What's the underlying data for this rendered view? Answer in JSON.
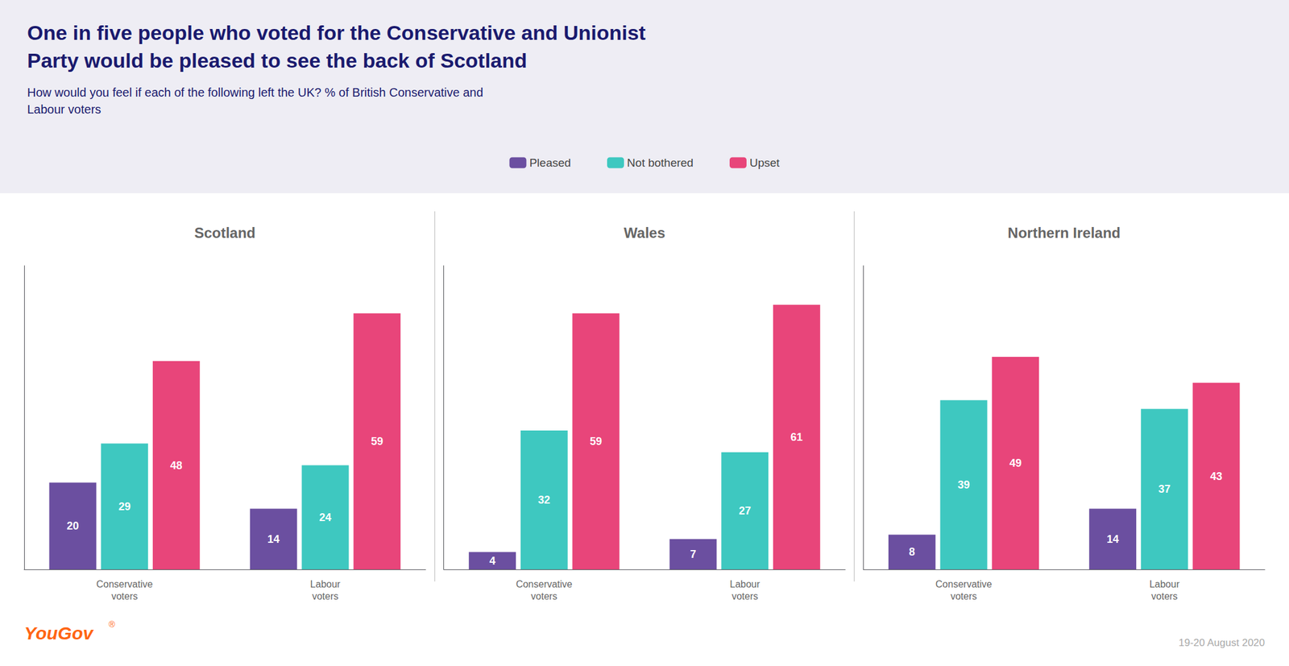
{
  "title": "One in five people who voted for the Conservative and Unionist\nParty would be pleased to see the back of Scotland",
  "subtitle": "How would you feel if each of the following left the UK? % of British Conservative and\nLabour voters",
  "annotations": [
    "YouGov",
    "®",
    "19-20 August 2020"
  ],
  "chart_data": [
    {
      "type": "bar",
      "title": "Scotland",
      "categories": [
        "Conservative\nvoters",
        "Labour\nvoters"
      ],
      "series": [
        {
          "name": "Pleased",
          "color": "#6b4fa0",
          "values": [
            20,
            14
          ]
        },
        {
          "name": "Not bothered",
          "color": "#3ec8c0",
          "values": [
            29,
            24
          ]
        },
        {
          "name": "Upset",
          "color": "#e8457a",
          "values": [
            48,
            59
          ]
        }
      ],
      "ylim": [
        0,
        70
      ],
      "yticks": [],
      "tick_labels": "x",
      "grid": false,
      "data_labels": true,
      "legend": "top"
    },
    {
      "type": "bar",
      "title": "Wales",
      "categories": [
        "Conservative\nvoters",
        "Labour\nvoters"
      ],
      "series": [
        {
          "name": "Pleased",
          "color": "#6b4fa0",
          "values": [
            4,
            7
          ]
        },
        {
          "name": "Not bothered",
          "color": "#3ec8c0",
          "values": [
            32,
            27
          ]
        },
        {
          "name": "Upset",
          "color": "#e8457a",
          "values": [
            59,
            61
          ]
        }
      ],
      "ylim": [
        0,
        70
      ],
      "yticks": [],
      "tick_labels": "x",
      "grid": false,
      "data_labels": true
    },
    {
      "type": "bar",
      "title": "Northern Ireland",
      "categories": [
        "Conservative\nvoters",
        "Labour\nvoters"
      ],
      "series": [
        {
          "name": "Pleased",
          "color": "#6b4fa0",
          "values": [
            8,
            14
          ]
        },
        {
          "name": "Not bothered",
          "color": "#3ec8c0",
          "values": [
            39,
            37
          ]
        },
        {
          "name": "Upset",
          "color": "#e8457a",
          "values": [
            49,
            43
          ]
        }
      ],
      "ylim": [
        0,
        70
      ],
      "yticks": [],
      "tick_labels": "x",
      "grid": false,
      "data_labels": true
    }
  ]
}
